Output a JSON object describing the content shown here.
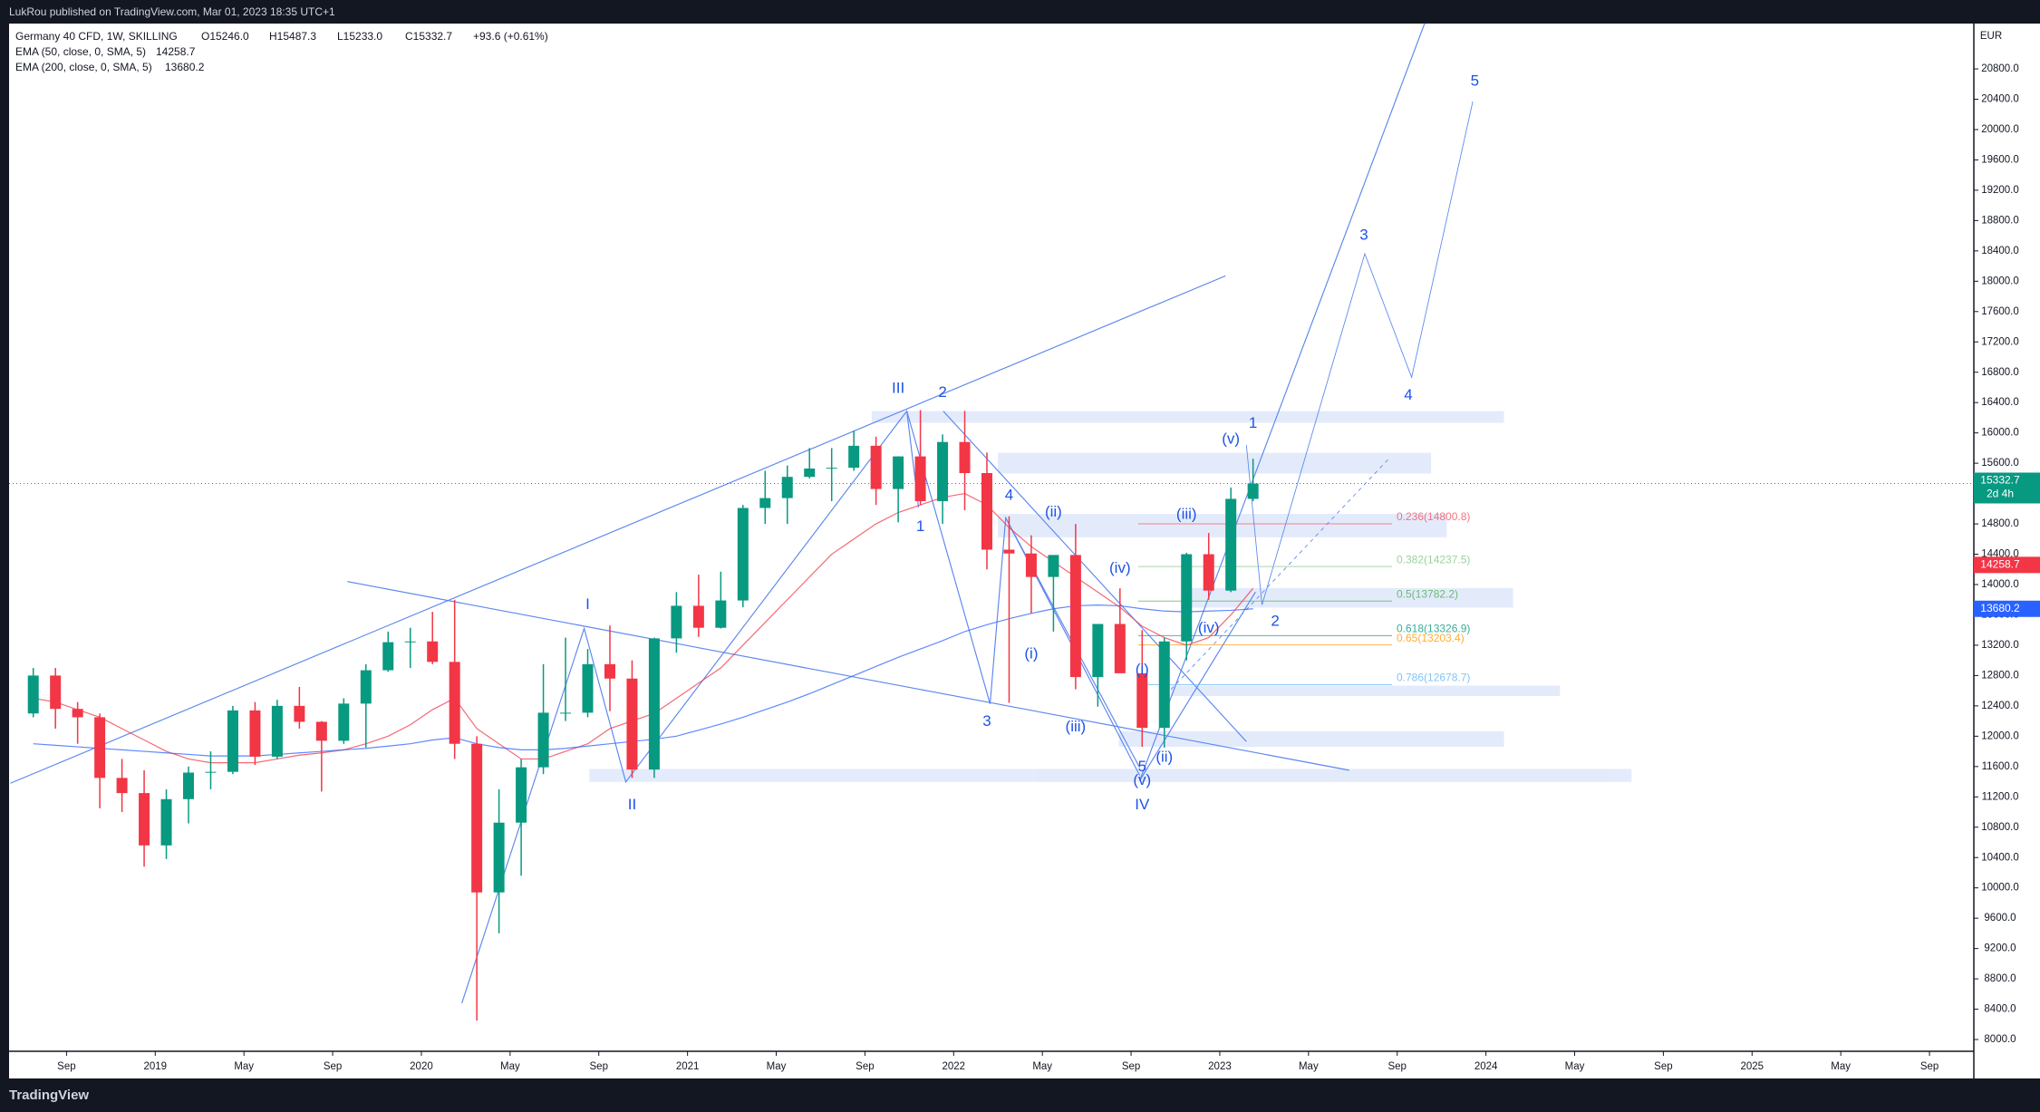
{
  "header": {
    "publisher": "LukRou published on TradingView.com, Mar 01, 2023 18:35 UTC+1",
    "footer": "TradingView"
  },
  "chart_data": {
    "type": "candlestick",
    "symbol": "Germany 40 CFD, 1W, SKILLING",
    "legend_ohlc": [
      "O15246.0",
      "H15487.3",
      "L15233.0",
      "C15332.7"
    ],
    "change": "+93.6 (+0.61%)",
    "currency": "EUR",
    "x": [
      "2018-07",
      "2018-08",
      "2018-09",
      "2018-10",
      "2018-11",
      "2018-12",
      "2019-01",
      "2019-02",
      "2019-03",
      "2019-04",
      "2019-05",
      "2019-06",
      "2019-07",
      "2019-08",
      "2019-09",
      "2019-10",
      "2019-11",
      "2019-12",
      "2020-01",
      "2020-02",
      "2020-03",
      "2020-04",
      "2020-05",
      "2020-06",
      "2020-07",
      "2020-08",
      "2020-09",
      "2020-10",
      "2020-11",
      "2020-12",
      "2021-01",
      "2021-02",
      "2021-03",
      "2021-04",
      "2021-05",
      "2021-06",
      "2021-07",
      "2021-08",
      "2021-09",
      "2021-10",
      "2021-11",
      "2021-12",
      "2022-01",
      "2022-02",
      "2022-03",
      "2022-04",
      "2022-05",
      "2022-06",
      "2022-07",
      "2022-08",
      "2022-09",
      "2022-10",
      "2022-11",
      "2022-12",
      "2023-01",
      "2023-02"
    ],
    "open": [
      12300,
      12800,
      12360,
      12250,
      11450,
      11250,
      10560,
      11170,
      11520,
      11530,
      12340,
      11730,
      12400,
      12190,
      11940,
      12430,
      12870,
      13240,
      13250,
      12980,
      11900,
      9940,
      10860,
      11590,
      12310,
      12310,
      12950,
      12760,
      11560,
      13290,
      13720,
      13430,
      13790,
      15010,
      15140,
      15420,
      15530,
      15540,
      15830,
      15260,
      15690,
      15100,
      15880,
      15470,
      14460,
      14410,
      14100,
      14390,
      12780,
      13480,
      12830,
      12110,
      13250,
      14400,
      13920,
      15130
    ],
    "high": [
      12900,
      12900,
      12450,
      12300,
      11700,
      11550,
      11300,
      11600,
      11800,
      12400,
      12450,
      12480,
      12650,
      12200,
      12500,
      12950,
      13380,
      13430,
      13640,
      13800,
      12000,
      11300,
      11700,
      12950,
      13300,
      13150,
      13460,
      13000,
      13300,
      13900,
      14130,
      14170,
      15050,
      15500,
      15570,
      15800,
      15800,
      16030,
      15950,
      15690,
      16300,
      15980,
      16290,
      15740,
      14900,
      14650,
      14350,
      14800,
      13450,
      13950,
      13400,
      13300,
      14420,
      14680,
      15280,
      15660
    ],
    "low": [
      12250,
      12100,
      11900,
      11050,
      11000,
      10280,
      10380,
      10850,
      11300,
      11500,
      11620,
      11700,
      12100,
      11270,
      11900,
      11850,
      12850,
      12900,
      12950,
      11700,
      8250,
      9400,
      10160,
      11500,
      12200,
      12250,
      12330,
      11450,
      11450,
      13100,
      13310,
      13420,
      13700,
      14800,
      14800,
      15400,
      15100,
      15500,
      15050,
      14820,
      15050,
      14800,
      14980,
      14200,
      12440,
      13620,
      13380,
      12620,
      12390,
      12840,
      11860,
      11850,
      13000,
      13800,
      13900,
      15100
    ],
    "close": [
      12800,
      12360,
      12250,
      11450,
      11250,
      10560,
      11170,
      11520,
      11530,
      12340,
      11730,
      12400,
      12190,
      11940,
      12430,
      12870,
      13240,
      13250,
      12980,
      11900,
      9940,
      10860,
      11590,
      12310,
      12310,
      12950,
      12760,
      11560,
      13290,
      13720,
      13430,
      13790,
      15010,
      15140,
      15420,
      15530,
      15540,
      15830,
      15260,
      15690,
      15100,
      15880,
      15470,
      14460,
      14410,
      14100,
      14390,
      12780,
      13480,
      12830,
      12110,
      13250,
      14400,
      13920,
      15130,
      15332.7
    ],
    "up_color": "#089981",
    "down_color": "#f23645",
    "series": [
      {
        "name": "EMA (50, close, 0, SMA, 5)",
        "color": "#f23645",
        "last": 14258.7,
        "values": [
          12500,
          12450,
          12350,
          12250,
          12100,
          11950,
          11800,
          11700,
          11650,
          11650,
          11650,
          11700,
          11750,
          11780,
          11820,
          11900,
          12000,
          12150,
          12350,
          12500,
          12100,
          11900,
          11700,
          11700,
          11800,
          11900,
          12100,
          12200,
          12300,
          12500,
          12700,
          12900,
          13200,
          13500,
          13800,
          14100,
          14400,
          14600,
          14800,
          14950,
          15050,
          15150,
          15200,
          15050,
          14750,
          14500,
          14300,
          14100,
          13900,
          13700,
          13450,
          13300,
          13200,
          13300,
          13600,
          13950
        ]
      },
      {
        "name": "EMA (200, close, 0, SMA, 5)",
        "color": "#2962ff",
        "last": 13680.2,
        "values": [
          11900,
          11880,
          11860,
          11840,
          11820,
          11800,
          11780,
          11760,
          11740,
          11740,
          11740,
          11760,
          11780,
          11800,
          11820,
          11840,
          11870,
          11900,
          11950,
          11980,
          11900,
          11850,
          11820,
          11820,
          11840,
          11870,
          11900,
          11930,
          11960,
          12000,
          12080,
          12160,
          12250,
          12350,
          12450,
          12560,
          12680,
          12800,
          12920,
          13040,
          13150,
          13260,
          13380,
          13470,
          13550,
          13620,
          13680,
          13720,
          13730,
          13720,
          13680,
          13650,
          13640,
          13650,
          13660,
          13680
        ]
      }
    ],
    "last_price": 15332.7,
    "countdown": "2d 4h",
    "last_color": "#089981",
    "xlim": [
      "2018-06",
      "2025-11"
    ],
    "xticks": [
      {
        "value": "2018-09",
        "label": "Sep"
      },
      {
        "value": "2019-01",
        "label": "2019"
      },
      {
        "value": "2019-05",
        "label": "May"
      },
      {
        "value": "2019-09",
        "label": "Sep"
      },
      {
        "value": "2020-01",
        "label": "2020"
      },
      {
        "value": "2020-05",
        "label": "May"
      },
      {
        "value": "2020-09",
        "label": "Sep"
      },
      {
        "value": "2021-01",
        "label": "2021"
      },
      {
        "value": "2021-05",
        "label": "May"
      },
      {
        "value": "2021-09",
        "label": "Sep"
      },
      {
        "value": "2022-01",
        "label": "2022"
      },
      {
        "value": "2022-05",
        "label": "May"
      },
      {
        "value": "2022-09",
        "label": "Sep"
      },
      {
        "value": "2023-01",
        "label": "2023"
      },
      {
        "value": "2023-05",
        "label": "May"
      },
      {
        "value": "2023-09",
        "label": "Sep"
      },
      {
        "value": "2024-01",
        "label": "2024"
      },
      {
        "value": "2024-05",
        "label": "May"
      },
      {
        "value": "2024-09",
        "label": "Sep"
      },
      {
        "value": "2025-01",
        "label": "2025"
      },
      {
        "value": "2025-05",
        "label": "May"
      },
      {
        "value": "2025-09",
        "label": "Sep"
      }
    ],
    "ylim": [
      7845,
      21398
    ],
    "yticks": [
      {
        "value": 8000,
        "label": "8000.0"
      },
      {
        "value": 8400,
        "label": "8400.0"
      },
      {
        "value": 8800,
        "label": "8800.0"
      },
      {
        "value": 9200,
        "label": "9200.0"
      },
      {
        "value": 9600,
        "label": "9600.0"
      },
      {
        "value": 10000,
        "label": "10000.0"
      },
      {
        "value": 10400,
        "label": "10400.0"
      },
      {
        "value": 10800,
        "label": "10800.0"
      },
      {
        "value": 11200,
        "label": "11200.0"
      },
      {
        "value": 11600,
        "label": "11600.0"
      },
      {
        "value": 12000,
        "label": "12000.0"
      },
      {
        "value": 12400,
        "label": "12400.0"
      },
      {
        "value": 12800,
        "label": "12800.0"
      },
      {
        "value": 13200,
        "label": "13200.0"
      },
      {
        "value": 13600,
        "label": "13600.0"
      },
      {
        "value": 14000,
        "label": "14000.0"
      },
      {
        "value": 14400,
        "label": "14400.0"
      },
      {
        "value": 14800,
        "label": "14800.0"
      },
      {
        "value": 15200,
        "label": "15200.0"
      },
      {
        "value": 15600,
        "label": "15600.0"
      },
      {
        "value": 16000,
        "label": "16000.0"
      },
      {
        "value": 16400,
        "label": "16400.0"
      },
      {
        "value": 16800,
        "label": "16800.0"
      },
      {
        "value": 17200,
        "label": "17200.0"
      },
      {
        "value": 17600,
        "label": "17600.0"
      },
      {
        "value": 18000,
        "label": "18000.0"
      },
      {
        "value": 18400,
        "label": "18400.0"
      },
      {
        "value": 18800,
        "label": "18800.0"
      },
      {
        "value": 19200,
        "label": "19200.0"
      },
      {
        "value": 19600,
        "label": "19600.0"
      },
      {
        "value": 20000,
        "label": "20000.0"
      },
      {
        "value": 20400,
        "label": "20400.0"
      },
      {
        "value": 20800,
        "label": "20800.0"
      }
    ],
    "fib_levels": [
      {
        "value": 14800.8,
        "label": "0.236(14800.8)",
        "color": "#f7525f"
      },
      {
        "value": 14237.5,
        "label": "0.382(14237.5)",
        "color": "#81c784"
      },
      {
        "value": 13782.2,
        "label": "0.5(13782.2)",
        "color": "#4caf50"
      },
      {
        "value": 13326.9,
        "label": "0.618(13326.9)",
        "color": "#089981"
      },
      {
        "value": 13203.4,
        "label": "0.65(13203.4)",
        "color": "#ff9800"
      },
      {
        "value": 12678.7,
        "label": "0.786(12678.7)",
        "color": "#64b5f6"
      }
    ],
    "annotation_color": "#1e53e5",
    "annotations": [
      {
        "text": "III",
        "x": "2021-10",
        "y": 16580
      },
      {
        "text": "2",
        "x": "2021-12",
        "y": 16530
      },
      {
        "text": "1",
        "x": "2021-11",
        "y": 14760
      },
      {
        "text": "4",
        "x": "2022-03",
        "y": 15170
      },
      {
        "text": "3",
        "x": "2022-02",
        "y": 12190
      },
      {
        "text": "(ii)",
        "x": "2022-05",
        "y": 14950
      },
      {
        "text": "(i)",
        "x": "2022-04",
        "y": 13080
      },
      {
        "text": "(iv)",
        "x": "2022-08",
        "y": 14210
      },
      {
        "text": "(iii)",
        "x": "2022-06",
        "y": 12120
      },
      {
        "text": "I",
        "x": "2020-08",
        "y": 13730
      },
      {
        "text": "II",
        "x": "2020-10",
        "y": 11090
      },
      {
        "text": "5",
        "x": "2022-09",
        "y": 11590
      },
      {
        "text": "(v)",
        "x": "2022-09",
        "y": 11410
      },
      {
        "text": "IV",
        "x": "2022-09",
        "y": 11090
      },
      {
        "text": "(ii)",
        "x": "2022-10",
        "y": 11720
      },
      {
        "text": "(i)",
        "x": "2022-09",
        "y": 12870
      },
      {
        "text": "(iv)",
        "x": "2022-12",
        "y": 13420
      },
      {
        "text": "(iii)",
        "x": "2022-11",
        "y": 14920
      },
      {
        "text": "(v)",
        "x": "2023-01",
        "y": 15910
      },
      {
        "text": "1",
        "x": "2023-02",
        "y": 16120
      },
      {
        "text": "2",
        "x": "2023-03",
        "y": 13510
      },
      {
        "text": "3",
        "x": "2023-07",
        "y": 18600
      },
      {
        "text": "4",
        "x": "2023-09",
        "y": 16490
      },
      {
        "text": "5",
        "x": "2023-12",
        "y": 20630
      }
    ]
  }
}
